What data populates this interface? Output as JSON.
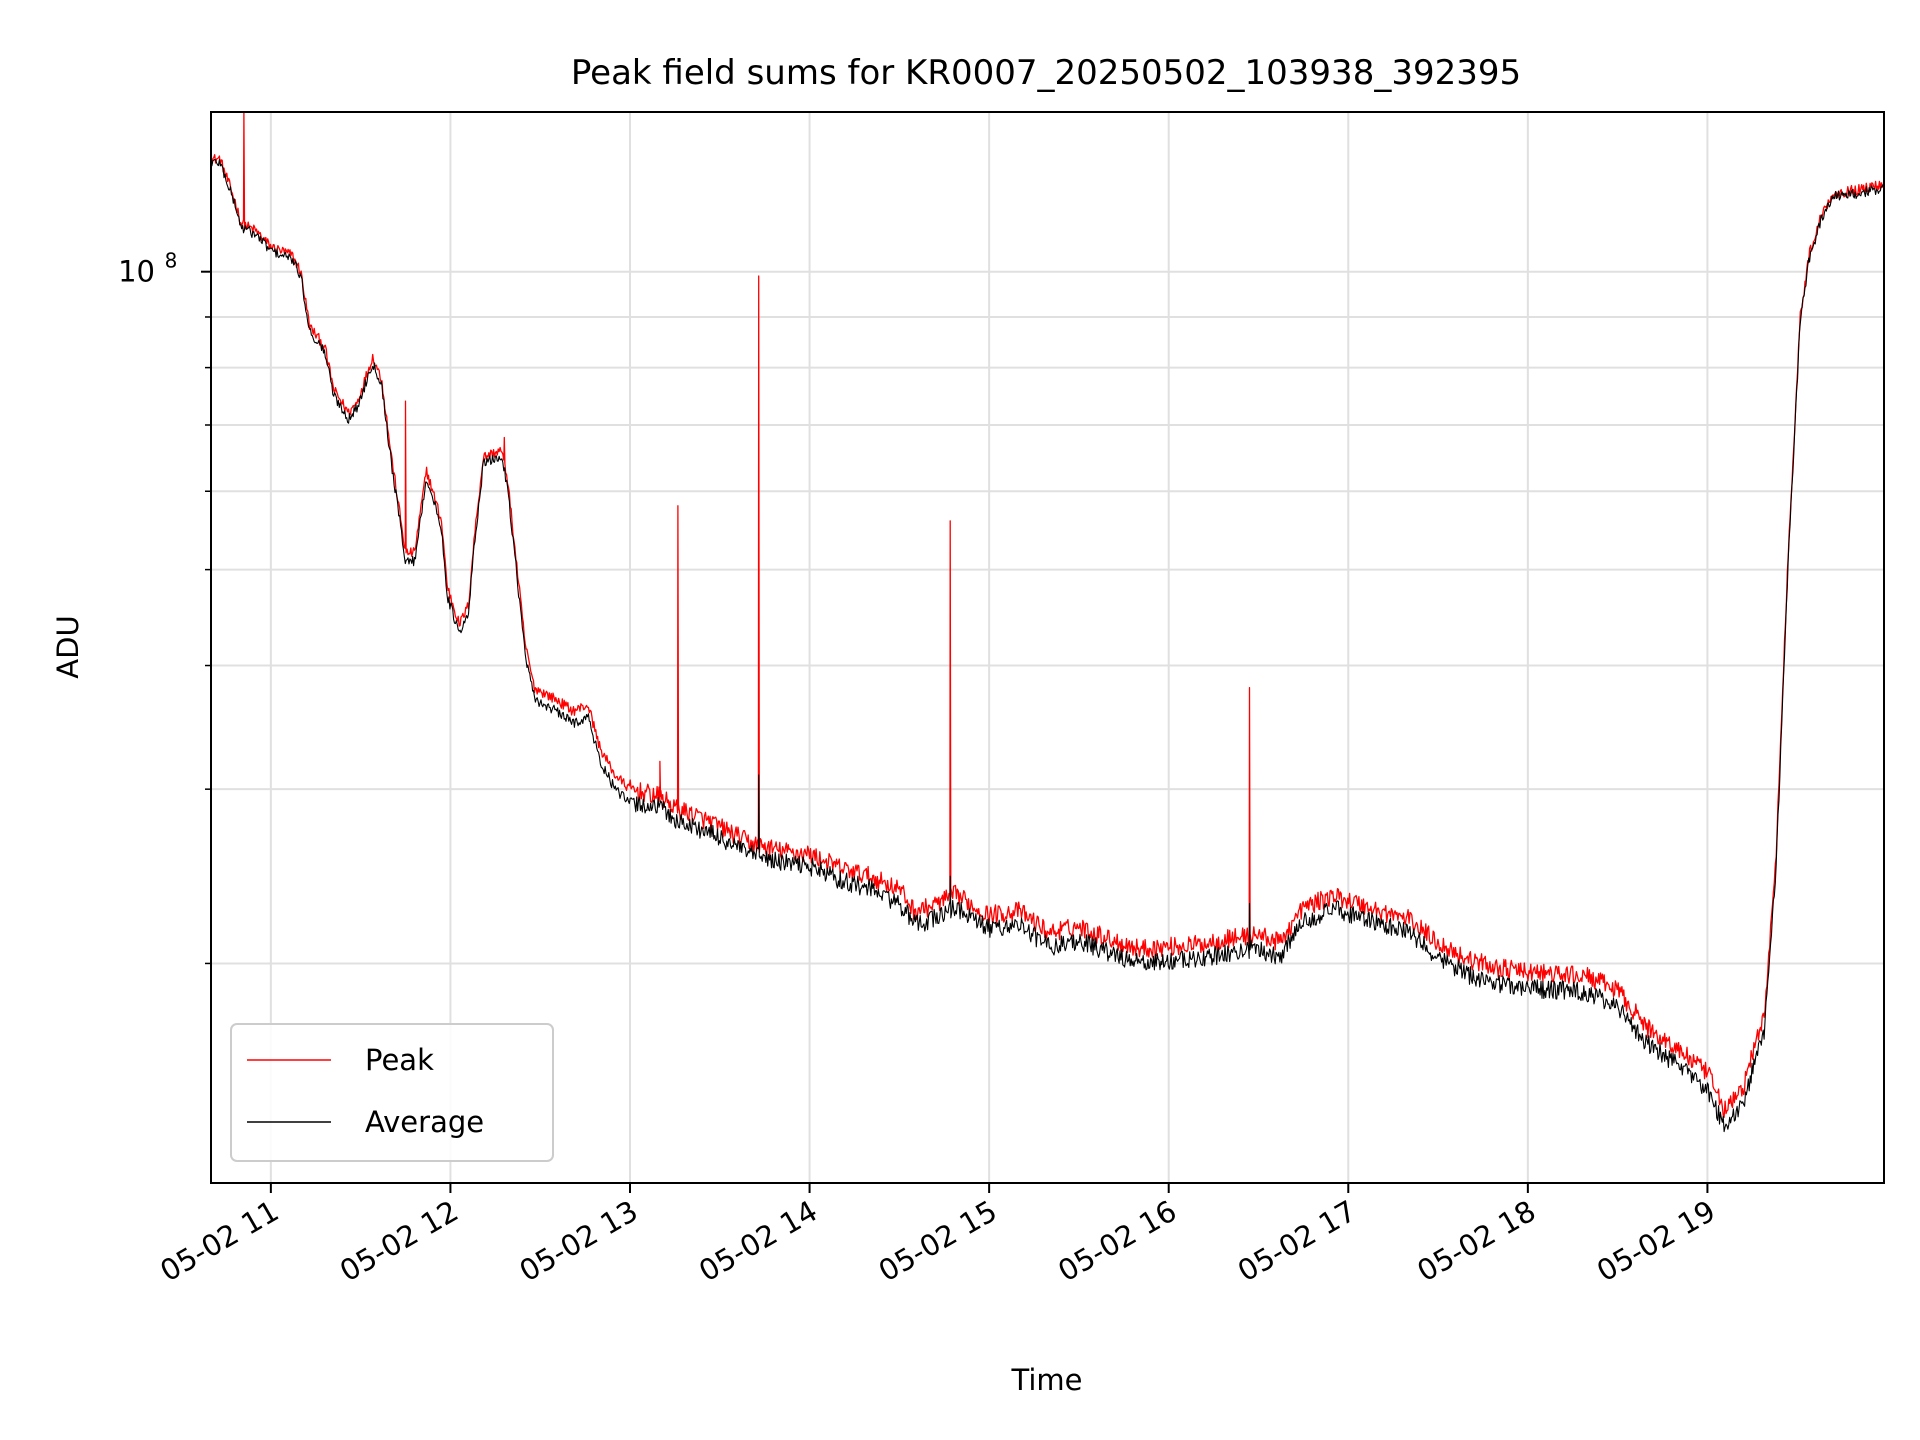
{
  "chart_data": {
    "type": "line",
    "title": "Peak field sums for KR0007_20250502_103938_392395",
    "xlabel": "Time",
    "ylabel": "ADU",
    "x_axis_kind": "time",
    "x_range": [
      "05-02 10:40",
      "05-02 19:59"
    ],
    "x_ticks": [
      {
        "value": "05-02 11:00",
        "label": "05-02 11"
      },
      {
        "value": "05-02 12:00",
        "label": "05-02 12"
      },
      {
        "value": "05-02 13:00",
        "label": "05-02 13"
      },
      {
        "value": "05-02 14:00",
        "label": "05-02 14"
      },
      {
        "value": "05-02 15:00",
        "label": "05-02 15"
      },
      {
        "value": "05-02 16:00",
        "label": "05-02 16"
      },
      {
        "value": "05-02 17:00",
        "label": "05-02 17"
      },
      {
        "value": "05-02 18:00",
        "label": "05-02 18"
      },
      {
        "value": "05-02 19:00",
        "label": "05-02 19"
      }
    ],
    "y_scale": "log",
    "ylim": [
      12000000,
      145000000
    ],
    "y_ticks_major": [
      {
        "value": 100000000,
        "label_base": "10",
        "label_exp": "8"
      }
    ],
    "y_ticks_minor": [
      20000000,
      30000000,
      40000000,
      50000000,
      60000000,
      70000000,
      80000000,
      90000000
    ],
    "grid": true,
    "legend_position": "lower-left",
    "series": [
      {
        "name": "Peak",
        "color": "#ff0000",
        "points": [
          [
            "05-02 10:40",
            130000000
          ],
          [
            "05-02 10:43",
            130000000
          ],
          [
            "05-02 10:48",
            118000000
          ],
          [
            "05-02 10:50",
            112000000
          ],
          [
            "05-02 10:55",
            110000000
          ],
          [
            "05-02 11:00",
            106000000
          ],
          [
            "05-02 11:07",
            104000000
          ],
          [
            "05-02 11:10",
            100000000
          ],
          [
            "05-02 11:13",
            88000000
          ],
          [
            "05-02 11:18",
            84000000
          ],
          [
            "05-02 11:21",
            76000000
          ],
          [
            "05-02 11:26",
            72000000
          ],
          [
            "05-02 11:29",
            74000000
          ],
          [
            "05-02 11:34",
            82000000
          ],
          [
            "05-02 11:37",
            78000000
          ],
          [
            "05-02 11:40",
            66000000
          ],
          [
            "05-02 11:45",
            52000000
          ],
          [
            "05-02 11:48",
            52000000
          ],
          [
            "05-02 11:52",
            63000000
          ],
          [
            "05-02 11:57",
            56000000
          ],
          [
            "05-02 11:59",
            48000000
          ],
          [
            "05-02 12:03",
            44000000
          ],
          [
            "05-02 12:06",
            46000000
          ],
          [
            "05-02 12:08",
            54000000
          ],
          [
            "05-02 12:11",
            65000000
          ],
          [
            "05-02 12:17",
            66000000
          ],
          [
            "05-02 12:19",
            62000000
          ],
          [
            "05-02 12:22",
            51000000
          ],
          [
            "05-02 12:25",
            42000000
          ],
          [
            "05-02 12:28",
            38000000
          ],
          [
            "05-02 12:35",
            37000000
          ],
          [
            "05-02 12:41",
            36000000
          ],
          [
            "05-02 12:46",
            36500000
          ],
          [
            "05-02 12:50",
            33000000
          ],
          [
            "05-02 12:55",
            31000000
          ],
          [
            "05-02 13:00",
            30000000
          ],
          [
            "05-02 13:10",
            29500000
          ],
          [
            "05-02 13:16",
            28600000
          ],
          [
            "05-02 13:20",
            28400000
          ],
          [
            "05-02 13:30",
            27500000
          ],
          [
            "05-02 13:40",
            26500000
          ],
          [
            "05-02 13:50",
            26000000
          ],
          [
            "05-02 14:00",
            25800000
          ],
          [
            "05-02 14:10",
            25000000
          ],
          [
            "05-02 14:20",
            24500000
          ],
          [
            "05-02 14:30",
            23800000
          ],
          [
            "05-02 14:35",
            22600000
          ],
          [
            "05-02 14:40",
            22800000
          ],
          [
            "05-02 14:49",
            23500000
          ],
          [
            "05-02 14:55",
            22800000
          ],
          [
            "05-02 15:00",
            22400000
          ],
          [
            "05-02 15:10",
            22600000
          ],
          [
            "05-02 15:20",
            21500000
          ],
          [
            "05-02 15:30",
            21800000
          ],
          [
            "05-02 15:40",
            21200000
          ],
          [
            "05-02 15:50",
            20700000
          ],
          [
            "05-02 16:00",
            20800000
          ],
          [
            "05-02 16:10",
            20900000
          ],
          [
            "05-02 16:20",
            21200000
          ],
          [
            "05-02 16:30",
            21400000
          ],
          [
            "05-02 16:37",
            21000000
          ],
          [
            "05-02 16:45",
            22800000
          ],
          [
            "05-02 16:55",
            23400000
          ],
          [
            "05-02 17:00",
            23200000
          ],
          [
            "05-02 17:10",
            22600000
          ],
          [
            "05-02 17:20",
            22200000
          ],
          [
            "05-02 17:30",
            21000000
          ],
          [
            "05-02 17:40",
            20200000
          ],
          [
            "05-02 17:50",
            19800000
          ],
          [
            "05-02 18:00",
            19600000
          ],
          [
            "05-02 18:10",
            19500000
          ],
          [
            "05-02 18:20",
            19400000
          ],
          [
            "05-02 18:30",
            18800000
          ],
          [
            "05-02 18:40",
            17200000
          ],
          [
            "05-02 18:50",
            16400000
          ],
          [
            "05-02 19:00",
            15500000
          ],
          [
            "05-02 19:06",
            14200000
          ],
          [
            "05-02 19:12",
            15000000
          ],
          [
            "05-02 19:16",
            16600000
          ],
          [
            "05-02 19:19",
            17600000
          ],
          [
            "05-02 19:23",
            26000000
          ],
          [
            "05-02 19:27",
            52000000
          ],
          [
            "05-02 19:31",
            90000000
          ],
          [
            "05-02 19:34",
            104000000
          ],
          [
            "05-02 19:38",
            114000000
          ],
          [
            "05-02 19:42",
            120000000
          ],
          [
            "05-02 19:50",
            121000000
          ],
          [
            "05-02 19:56",
            122000000
          ],
          [
            "05-02 19:59",
            123000000
          ]
        ],
        "spikes": [
          {
            "x": "05-02 10:51",
            "y": 145000000
          },
          {
            "x": "05-02 11:45",
            "y": 74000000
          },
          {
            "x": "05-02 12:18",
            "y": 68000000
          },
          {
            "x": "05-02 13:10",
            "y": 32000000
          },
          {
            "x": "05-02 13:16",
            "y": 58000000
          },
          {
            "x": "05-02 13:43",
            "y": 99000000
          },
          {
            "x": "05-02 14:47",
            "y": 56000000
          },
          {
            "x": "05-02 16:27",
            "y": 38000000
          }
        ]
      },
      {
        "name": "Average",
        "color": "#000000",
        "points": [
          [
            "05-02 10:40",
            129000000
          ],
          [
            "05-02 10:43",
            129000000
          ],
          [
            "05-02 10:48",
            117000000
          ],
          [
            "05-02 10:50",
            111000000
          ],
          [
            "05-02 10:55",
            109000000
          ],
          [
            "05-02 11:00",
            105000000
          ],
          [
            "05-02 11:07",
            103000000
          ],
          [
            "05-02 11:10",
            99000000
          ],
          [
            "05-02 11:13",
            87000000
          ],
          [
            "05-02 11:18",
            83000000
          ],
          [
            "05-02 11:21",
            75000000
          ],
          [
            "05-02 11:26",
            71000000
          ],
          [
            "05-02 11:29",
            73000000
          ],
          [
            "05-02 11:34",
            81000000
          ],
          [
            "05-02 11:37",
            77000000
          ],
          [
            "05-02 11:40",
            65000000
          ],
          [
            "05-02 11:45",
            51000000
          ],
          [
            "05-02 11:48",
            51000000
          ],
          [
            "05-02 11:52",
            62000000
          ],
          [
            "05-02 11:57",
            55000000
          ],
          [
            "05-02 11:59",
            47000000
          ],
          [
            "05-02 12:03",
            43000000
          ],
          [
            "05-02 12:06",
            45000000
          ],
          [
            "05-02 12:08",
            53000000
          ],
          [
            "05-02 12:11",
            64000000
          ],
          [
            "05-02 12:17",
            65000000
          ],
          [
            "05-02 12:19",
            61000000
          ],
          [
            "05-02 12:22",
            50000000
          ],
          [
            "05-02 12:25",
            41000000
          ],
          [
            "05-02 12:28",
            37000000
          ],
          [
            "05-02 12:35",
            36000000
          ],
          [
            "05-02 12:41",
            35000000
          ],
          [
            "05-02 12:46",
            35500000
          ],
          [
            "05-02 12:50",
            32000000
          ],
          [
            "05-02 12:55",
            30000000
          ],
          [
            "05-02 13:00",
            29000000
          ],
          [
            "05-02 13:10",
            28800000
          ],
          [
            "05-02 13:16",
            27800000
          ],
          [
            "05-02 13:20",
            27600000
          ],
          [
            "05-02 13:30",
            26800000
          ],
          [
            "05-02 13:40",
            25800000
          ],
          [
            "05-02 13:50",
            25300000
          ],
          [
            "05-02 14:00",
            25100000
          ],
          [
            "05-02 14:10",
            24300000
          ],
          [
            "05-02 14:20",
            23800000
          ],
          [
            "05-02 14:30",
            23000000
          ],
          [
            "05-02 14:35",
            21900000
          ],
          [
            "05-02 14:40",
            22100000
          ],
          [
            "05-02 14:49",
            22800000
          ],
          [
            "05-02 14:55",
            22100000
          ],
          [
            "05-02 15:00",
            21700000
          ],
          [
            "05-02 15:10",
            21900000
          ],
          [
            "05-02 15:20",
            20800000
          ],
          [
            "05-02 15:30",
            21100000
          ],
          [
            "05-02 15:40",
            20500000
          ],
          [
            "05-02 15:50",
            20000000
          ],
          [
            "05-02 16:00",
            20100000
          ],
          [
            "05-02 16:10",
            20200000
          ],
          [
            "05-02 16:20",
            20500000
          ],
          [
            "05-02 16:30",
            20700000
          ],
          [
            "05-02 16:37",
            20300000
          ],
          [
            "05-02 16:45",
            22100000
          ],
          [
            "05-02 16:55",
            22700000
          ],
          [
            "05-02 17:00",
            22500000
          ],
          [
            "05-02 17:10",
            21900000
          ],
          [
            "05-02 17:20",
            21500000
          ],
          [
            "05-02 17:30",
            20300000
          ],
          [
            "05-02 17:40",
            19500000
          ],
          [
            "05-02 17:50",
            19100000
          ],
          [
            "05-02 18:00",
            18900000
          ],
          [
            "05-02 18:10",
            18800000
          ],
          [
            "05-02 18:20",
            18700000
          ],
          [
            "05-02 18:30",
            18100000
          ],
          [
            "05-02 18:40",
            16600000
          ],
          [
            "05-02 18:50",
            15800000
          ],
          [
            "05-02 19:00",
            14900000
          ],
          [
            "05-02 19:06",
            13600000
          ],
          [
            "05-02 19:12",
            14400000
          ],
          [
            "05-02 19:16",
            16000000
          ],
          [
            "05-02 19:19",
            17000000
          ],
          [
            "05-02 19:23",
            25200000
          ],
          [
            "05-02 19:27",
            51000000
          ],
          [
            "05-02 19:31",
            89000000
          ],
          [
            "05-02 19:34",
            103000000
          ],
          [
            "05-02 19:38",
            113000000
          ],
          [
            "05-02 19:42",
            119000000
          ],
          [
            "05-02 19:50",
            120000000
          ],
          [
            "05-02 19:56",
            121000000
          ],
          [
            "05-02 19:59",
            122000000
          ]
        ],
        "spikes": [
          {
            "x": "05-02 13:43",
            "y": 31000000
          },
          {
            "x": "05-02 14:47",
            "y": 24500000
          },
          {
            "x": "05-02 16:27",
            "y": 23000000
          }
        ]
      }
    ]
  }
}
